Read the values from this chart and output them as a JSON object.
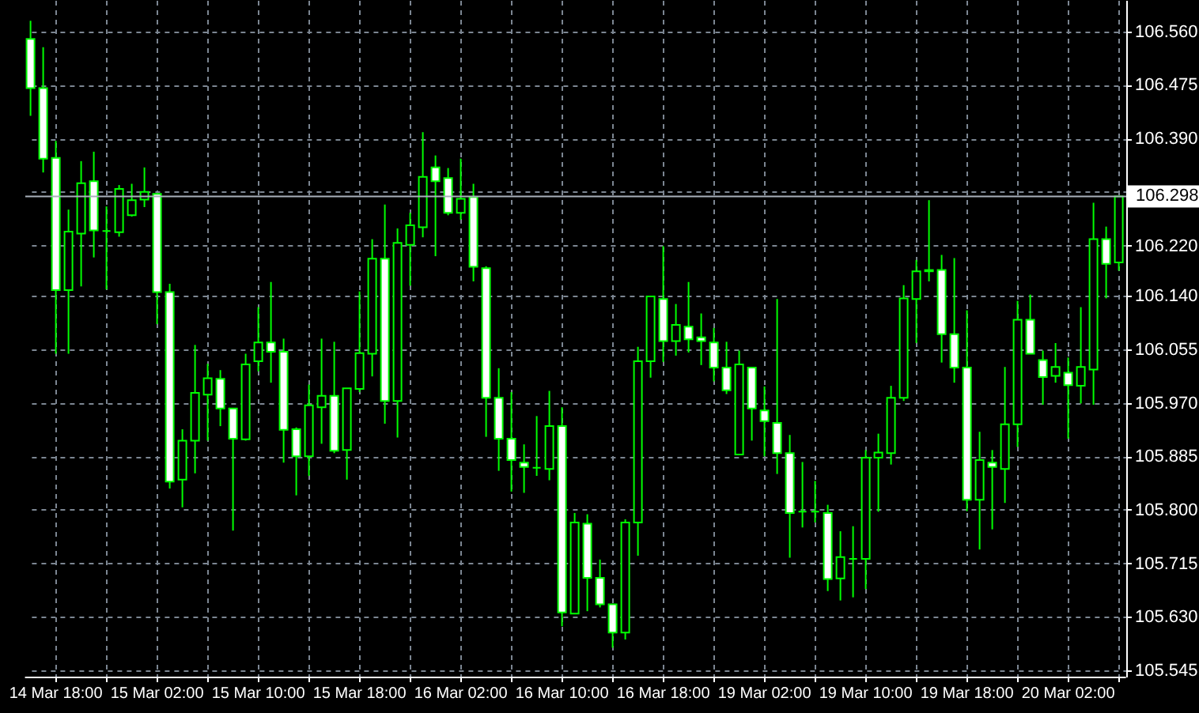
{
  "chart_data": {
    "type": "candlestick",
    "color": "#00ff00",
    "grid": true,
    "categories": [
      null,
      null,
      "14 Mar 18:00",
      null,
      null,
      null,
      null,
      null,
      null,
      null,
      "15 Mar 02:00",
      null,
      null,
      null,
      null,
      null,
      null,
      null,
      "15 Mar 10:00",
      null,
      null,
      null,
      null,
      null,
      null,
      null,
      "15 Mar 18:00",
      null,
      null,
      null,
      null,
      null,
      null,
      null,
      "16 Mar 02:00",
      null,
      null,
      null,
      null,
      null,
      null,
      null,
      "16 Mar 10:00",
      null,
      null,
      null,
      null,
      null,
      null,
      null,
      "16 Mar 18:00",
      null,
      null,
      null,
      null,
      null,
      null,
      null,
      "19 Mar 02:00",
      null,
      null,
      null,
      null,
      null,
      null,
      null,
      "19 Mar 10:00",
      null,
      null,
      null,
      null,
      null,
      null,
      null,
      "19 Mar 18:00",
      null,
      null,
      null,
      null,
      null,
      null,
      null,
      "20 Mar 02:00",
      null,
      null,
      null,
      null
    ],
    "ohlc": [
      [
        106.548,
        106.577,
        106.426,
        106.47
      ],
      [
        106.47,
        106.535,
        106.336,
        106.358
      ],
      [
        106.359,
        106.386,
        106.048,
        106.149
      ],
      [
        106.149,
        106.277,
        106.048,
        106.242
      ],
      [
        106.239,
        106.354,
        106.155,
        106.319
      ],
      [
        106.322,
        106.369,
        106.201,
        106.244
      ],
      [
        106.243,
        106.282,
        106.15,
        106.243
      ],
      [
        106.241,
        106.316,
        106.234,
        106.31
      ],
      [
        106.268,
        106.318,
        106.266,
        106.292
      ],
      [
        106.293,
        106.344,
        106.281,
        106.305
      ],
      [
        106.302,
        106.302,
        106.095,
        106.146
      ],
      [
        106.146,
        106.159,
        105.834,
        105.845
      ],
      [
        105.848,
        105.928,
        105.804,
        105.91
      ],
      [
        105.91,
        106.062,
        105.858,
        105.986
      ],
      [
        105.983,
        106.032,
        105.91,
        106.009
      ],
      [
        106.008,
        106.022,
        105.933,
        105.961
      ],
      [
        105.961,
        105.961,
        105.767,
        105.913
      ],
      [
        105.912,
        106.048,
        105.91,
        106.031
      ],
      [
        106.036,
        106.122,
        106.02,
        106.066
      ],
      [
        106.066,
        106.162,
        106.002,
        106.051
      ],
      [
        106.051,
        106.072,
        105.875,
        105.927
      ],
      [
        105.928,
        105.931,
        105.823,
        105.885
      ],
      [
        105.885,
        105.999,
        105.854,
        105.966
      ],
      [
        105.963,
        106.072,
        105.905,
        105.981
      ],
      [
        105.981,
        106.067,
        105.89,
        105.894
      ],
      [
        105.895,
        105.993,
        105.848,
        105.993
      ],
      [
        105.992,
        106.147,
        105.987,
        106.049
      ],
      [
        106.048,
        106.23,
        106.012,
        106.199
      ],
      [
        106.199,
        106.285,
        105.937,
        105.973
      ],
      [
        105.973,
        106.247,
        105.915,
        106.224
      ],
      [
        106.221,
        106.272,
        106.156,
        106.252
      ],
      [
        106.249,
        106.4,
        106.233,
        106.329
      ],
      [
        106.344,
        106.363,
        106.203,
        106.322
      ],
      [
        106.327,
        106.343,
        106.268,
        106.272
      ],
      [
        106.272,
        106.358,
        106.261,
        106.294
      ],
      [
        106.297,
        106.318,
        106.163,
        106.186
      ],
      [
        106.184,
        106.187,
        105.916,
        105.978
      ],
      [
        105.978,
        106.025,
        105.862,
        105.913
      ],
      [
        105.913,
        105.987,
        105.829,
        105.879
      ],
      [
        105.875,
        105.904,
        105.827,
        105.868
      ],
      [
        105.867,
        105.949,
        105.854,
        105.867
      ],
      [
        105.865,
        105.989,
        105.847,
        105.933
      ],
      [
        105.933,
        105.963,
        105.615,
        105.637
      ],
      [
        105.635,
        105.795,
        105.635,
        105.78
      ],
      [
        105.778,
        105.793,
        105.639,
        105.692
      ],
      [
        105.692,
        105.721,
        105.645,
        105.65
      ],
      [
        105.65,
        105.65,
        105.581,
        105.605
      ],
      [
        105.605,
        105.785,
        105.594,
        105.78
      ],
      [
        105.78,
        106.059,
        105.727,
        106.036
      ],
      [
        106.036,
        106.139,
        106.01,
        106.139
      ],
      [
        106.135,
        106.219,
        106.035,
        106.068
      ],
      [
        106.068,
        106.127,
        106.045,
        106.094
      ],
      [
        106.091,
        106.162,
        106.05,
        106.071
      ],
      [
        106.074,
        106.112,
        106.03,
        106.068
      ],
      [
        106.066,
        106.089,
        106.004,
        106.026
      ],
      [
        106.026,
        106.067,
        105.984,
        105.99
      ],
      [
        105.888,
        106.053,
        105.888,
        106.031
      ],
      [
        106.026,
        106.026,
        105.91,
        105.961
      ],
      [
        105.958,
        105.996,
        105.885,
        105.941
      ],
      [
        105.938,
        106.135,
        105.857,
        105.89
      ],
      [
        105.89,
        105.919,
        105.724,
        105.795
      ],
      [
        105.797,
        105.876,
        105.772,
        105.797
      ],
      [
        105.797,
        105.846,
        105.78,
        105.797
      ],
      [
        105.795,
        105.808,
        105.671,
        105.69
      ],
      [
        105.691,
        105.766,
        105.656,
        105.725
      ],
      [
        105.722,
        105.774,
        105.661,
        105.722
      ],
      [
        105.722,
        105.895,
        105.674,
        105.883
      ],
      [
        105.883,
        105.921,
        105.797,
        105.891
      ],
      [
        105.89,
        105.997,
        105.872,
        105.978
      ],
      [
        105.978,
        106.157,
        105.973,
        106.136
      ],
      [
        106.135,
        106.197,
        106.065,
        106.179
      ],
      [
        106.181,
        106.292,
        106.163,
        106.179
      ],
      [
        106.181,
        106.205,
        106.034,
        106.079
      ],
      [
        106.079,
        106.2,
        106.002,
        106.026
      ],
      [
        106.026,
        106.117,
        105.798,
        105.816
      ],
      [
        105.816,
        105.924,
        105.737,
        105.879
      ],
      [
        105.875,
        105.895,
        105.769,
        105.868
      ],
      [
        105.865,
        106.027,
        105.811,
        105.936
      ],
      [
        105.936,
        106.132,
        105.9,
        106.102
      ],
      [
        106.102,
        106.142,
        106.048,
        106.048
      ],
      [
        106.038,
        106.053,
        105.967,
        106.011
      ],
      [
        106.013,
        106.065,
        106.002,
        106.027
      ],
      [
        106.018,
        106.042,
        105.913,
        105.998
      ],
      [
        105.997,
        106.122,
        105.969,
        106.027
      ],
      [
        106.023,
        106.288,
        105.967,
        106.23
      ],
      [
        106.23,
        106.25,
        106.136,
        106.191
      ],
      [
        106.193,
        106.298,
        106.18,
        106.298
      ]
    ],
    "ylim": [
      105.535,
      106.61
    ],
    "yticks": [
      {
        "value": 106.56,
        "label": "106.560"
      },
      {
        "value": 106.475,
        "label": "106.475"
      },
      {
        "value": 106.39,
        "label": "106.390"
      },
      {
        "value": 106.305,
        "label": null
      },
      {
        "value": 106.22,
        "label": "106.220"
      },
      {
        "value": 106.14,
        "label": "106.140"
      },
      {
        "value": 106.055,
        "label": "106.055"
      },
      {
        "value": 105.97,
        "label": "105.970"
      },
      {
        "value": 105.885,
        "label": "105.885"
      },
      {
        "value": 105.8,
        "label": "105.800"
      },
      {
        "value": 105.715,
        "label": "105.715"
      },
      {
        "value": 105.63,
        "label": "105.630"
      },
      {
        "value": 105.545,
        "label": "105.545"
      }
    ],
    "ref_lines": [
      {
        "axis": "y",
        "value": 106.298,
        "label": "106.298",
        "color": "#a9b1bb"
      }
    ]
  }
}
